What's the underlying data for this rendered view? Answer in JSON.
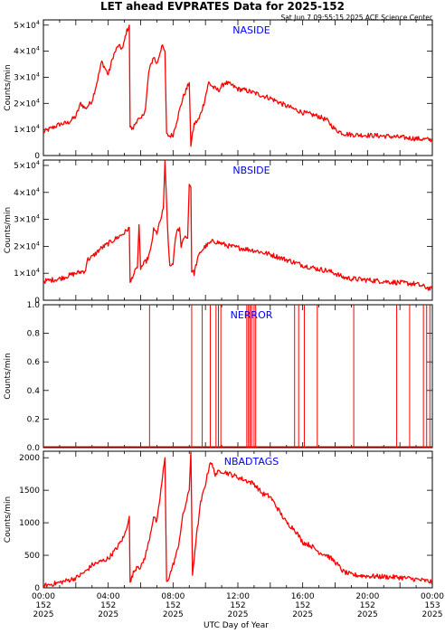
{
  "title": "LET ahead EVPRATES Data for 2025-152",
  "timestamp": "Sat Jun  7 09:55:15 2025 ACE Science Center",
  "xlabel": "UTC Day of Year",
  "colors": {
    "line": "#ff0000",
    "label": "#0000ff",
    "axis": "#000000"
  },
  "xticks": [
    {
      "x": 0,
      "time": "00:00",
      "doy": "152",
      "year": "2025"
    },
    {
      "x": 4,
      "time": "04:00",
      "doy": "152",
      "year": "2025"
    },
    {
      "x": 8,
      "time": "08:00",
      "doy": "152",
      "year": "2025"
    },
    {
      "x": 12,
      "time": "12:00",
      "doy": "152",
      "year": "2025"
    },
    {
      "x": 16,
      "time": "16:00",
      "doy": "152",
      "year": "2025"
    },
    {
      "x": 20,
      "time": "20:00",
      "doy": "152",
      "year": "2025"
    },
    {
      "x": 24,
      "time": "00:00",
      "doy": "153",
      "year": "2025"
    }
  ],
  "chart_data": [
    {
      "type": "line",
      "panel_label": "NASIDE",
      "ylabel": "Counts/min",
      "xlim": [
        0,
        24
      ],
      "ylim": [
        0,
        52000
      ],
      "ytick_labels": [
        {
          "v": 0,
          "base": "0",
          "exp": ""
        },
        {
          "v": 10000,
          "base": "1×10",
          "exp": "4"
        },
        {
          "v": 20000,
          "base": "2×10",
          "exp": "4"
        },
        {
          "v": 30000,
          "base": "3×10",
          "exp": "4"
        },
        {
          "v": 40000,
          "base": "4×10",
          "exp": "4"
        },
        {
          "v": 50000,
          "base": "5×10",
          "exp": "4"
        }
      ],
      "x": [
        0,
        0.5,
        1,
        1.5,
        2,
        2.3,
        2.6,
        3,
        3.3,
        3.6,
        4,
        4.3,
        4.6,
        4.9,
        5.1,
        5.3,
        5.35,
        5.5,
        5.8,
        6,
        6.3,
        6.5,
        6.8,
        7,
        7.3,
        7.5,
        7.6,
        7.8,
        8,
        8.3,
        8.6,
        9,
        9.1,
        9.3,
        9.6,
        9.9,
        10.2,
        10.5,
        10.8,
        11.2,
        11.6,
        12,
        12.5,
        13,
        14,
        15,
        16,
        17,
        17.5,
        18,
        18.5,
        19,
        20,
        21,
        22,
        23,
        23.5,
        24
      ],
      "y": [
        9000,
        10500,
        12000,
        12500,
        15000,
        20000,
        18000,
        21000,
        28000,
        36000,
        31000,
        38000,
        42000,
        41000,
        47000,
        50000,
        11000,
        10000,
        14000,
        13500,
        18000,
        32000,
        38000,
        35000,
        42000,
        40000,
        8000,
        7500,
        8000,
        15000,
        22000,
        28000,
        4000,
        12000,
        14000,
        20000,
        28000,
        26000,
        25000,
        28000,
        27000,
        25500,
        25000,
        24000,
        22000,
        19000,
        16500,
        15000,
        13500,
        10000,
        8500,
        8000,
        7800,
        7500,
        7000,
        6500,
        6200,
        6000
      ]
    },
    {
      "type": "line",
      "panel_label": "NBSIDE",
      "ylabel": "Counts/min",
      "xlim": [
        0,
        24
      ],
      "ylim": [
        0,
        52000
      ],
      "ytick_labels": [
        {
          "v": 0,
          "base": "0",
          "exp": ""
        },
        {
          "v": 10000,
          "base": "1×10",
          "exp": "4"
        },
        {
          "v": 20000,
          "base": "2×10",
          "exp": "4"
        },
        {
          "v": 30000,
          "base": "3×10",
          "exp": "4"
        },
        {
          "v": 40000,
          "base": "4×10",
          "exp": "4"
        },
        {
          "v": 50000,
          "base": "5×10",
          "exp": "4"
        }
      ],
      "x": [
        0,
        0.5,
        1,
        1.5,
        2,
        2.6,
        2.7,
        3,
        3.5,
        4,
        4.5,
        5,
        5.3,
        5.35,
        5.5,
        5.8,
        5.9,
        6,
        6.4,
        6.6,
        6.8,
        7,
        7.2,
        7.4,
        7.5,
        7.7,
        7.8,
        8,
        8.2,
        8.4,
        8.5,
        8.7,
        8.9,
        9,
        9.1,
        9.15,
        9.3,
        9.5,
        9.7,
        10,
        10.5,
        11,
        11.5,
        12,
        12.5,
        13,
        14,
        15,
        16,
        17,
        17.5,
        18,
        18.5,
        19,
        20,
        21,
        22,
        23,
        23.5,
        24
      ],
      "y": [
        7000,
        7500,
        8000,
        9000,
        10000,
        11000,
        15000,
        16000,
        19000,
        21000,
        23000,
        25000,
        27000,
        6000,
        9000,
        12000,
        28000,
        12000,
        15000,
        18000,
        26000,
        25000,
        29000,
        34000,
        51000,
        22000,
        12000,
        14000,
        25000,
        27000,
        20000,
        24000,
        23000,
        43000,
        42000,
        11000,
        10000,
        15000,
        18000,
        20000,
        22000,
        21000,
        20000,
        19500,
        19000,
        18500,
        17000,
        15000,
        13000,
        11500,
        11000,
        10000,
        8500,
        8000,
        7500,
        7000,
        6500,
        6000,
        5000,
        4000
      ]
    },
    {
      "type": "line",
      "panel_label": "NERROR",
      "ylabel": "Counts/min",
      "xlim": [
        0,
        24
      ],
      "ylim": [
        0,
        1
      ],
      "ytick_labels": [
        {
          "v": 0,
          "base": "0.0",
          "exp": ""
        },
        {
          "v": 0.2,
          "base": "0.2",
          "exp": ""
        },
        {
          "v": 0.4,
          "base": "0.4",
          "exp": ""
        },
        {
          "v": 0.6,
          "base": "0.6",
          "exp": ""
        },
        {
          "v": 0.8,
          "base": "0.8",
          "exp": ""
        },
        {
          "v": 1,
          "base": "1.0",
          "exp": ""
        }
      ],
      "spikes": [
        6.55,
        9.15,
        9.8,
        10.3,
        10.65,
        10.8,
        10.95,
        12.55,
        12.65,
        12.75,
        12.85,
        13.0,
        13.1,
        15.5,
        15.75,
        16.1,
        16.9,
        19.15,
        21.8,
        22.6,
        23.45,
        23.65,
        23.85
      ]
    },
    {
      "type": "line",
      "panel_label": "NBADTAGS",
      "ylabel": "Counts/min",
      "xlim": [
        0,
        24
      ],
      "ylim": [
        0,
        2100
      ],
      "ytick_labels": [
        {
          "v": 0,
          "base": "0",
          "exp": ""
        },
        {
          "v": 500,
          "base": "500",
          "exp": ""
        },
        {
          "v": 1000,
          "base": "1000",
          "exp": ""
        },
        {
          "v": 1500,
          "base": "1500",
          "exp": ""
        },
        {
          "v": 2000,
          "base": "2000",
          "exp": ""
        }
      ],
      "x": [
        0,
        1,
        2,
        2.6,
        3,
        3.5,
        4,
        4.5,
        5,
        5.3,
        5.35,
        5.5,
        5.8,
        6,
        6.3,
        6.5,
        6.8,
        7,
        7.3,
        7.5,
        7.6,
        7.8,
        8,
        8.3,
        8.6,
        9,
        9.1,
        9.2,
        9.4,
        9.7,
        10,
        10.3,
        10.6,
        11,
        11.5,
        12,
        12.5,
        13,
        13.5,
        14,
        14.5,
        15,
        15.5,
        16,
        16.5,
        17,
        17.5,
        18,
        18.5,
        19,
        20,
        21,
        22,
        23,
        23.5,
        24
      ],
      "y": [
        30,
        80,
        150,
        250,
        350,
        400,
        450,
        600,
        800,
        1100,
        60,
        200,
        350,
        300,
        500,
        700,
        1100,
        1000,
        1600,
        2000,
        80,
        200,
        350,
        600,
        1100,
        1500,
        2100,
        200,
        700,
        1300,
        1600,
        1950,
        1750,
        1800,
        1750,
        1700,
        1650,
        1600,
        1450,
        1400,
        1200,
        1000,
        900,
        700,
        650,
        550,
        500,
        400,
        250,
        200,
        180,
        170,
        160,
        130,
        110,
        90
      ]
    }
  ]
}
